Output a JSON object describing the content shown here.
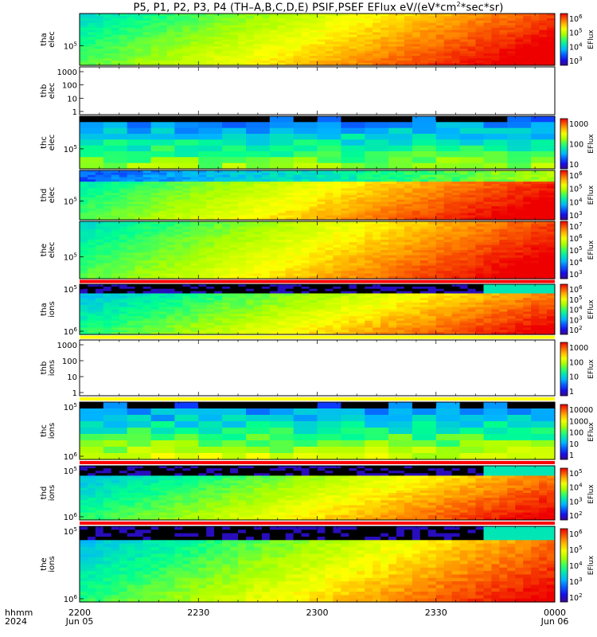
{
  "title": "P5, P1, P2, P3, P4 (TH–A,B,C,D,E) PSIF,PSEF EFlux eV/(eV*cm",
  "title_sup": "2",
  "title_tail": "*sec*sr)",
  "footer": {
    "hhmm": "hhmm",
    "year": "2024",
    "ticks": [
      {
        "label": "2200",
        "date": "Jun 05",
        "frac": 0.0
      },
      {
        "label": "2230",
        "frac": 0.25
      },
      {
        "label": "2300",
        "frac": 0.5
      },
      {
        "label": "2330",
        "frac": 0.75
      },
      {
        "label": "0000",
        "date": "Jun 06",
        "frac": 1.0
      }
    ]
  },
  "chart_data": {
    "type": "heatmap",
    "x_range": [
      "2024-06-05 22:00",
      "2024-06-06 00:00"
    ],
    "colorbar_label": "EFlux",
    "panels": [
      {
        "probe": "tha",
        "species": "elec",
        "ylabels": [
          {
            "base": "10",
            "exp": "5"
          }
        ],
        "cbar_ticks": [
          {
            "base": "10",
            "exp": "3"
          },
          {
            "base": "10",
            "exp": "4"
          },
          {
            "base": "10",
            "exp": "5"
          },
          {
            "base": "10",
            "exp": "6"
          }
        ],
        "has_data": true
      },
      {
        "probe": "thb",
        "species": "elec",
        "ylabels": [
          {
            "base": "1000",
            "exp": ""
          },
          {
            "base": "100",
            "exp": ""
          },
          {
            "base": "10",
            "exp": ""
          },
          {
            "base": "1",
            "exp": ""
          }
        ],
        "cbar_ticks": [],
        "has_data": false
      },
      {
        "probe": "thc",
        "species": "elec",
        "ylabels": [
          {
            "base": "10",
            "exp": "5"
          }
        ],
        "cbar_ticks": [
          {
            "base": "10",
            "exp": ""
          },
          {
            "base": "100",
            "exp": ""
          },
          {
            "base": "1000",
            "exp": ""
          }
        ],
        "has_data": true
      },
      {
        "probe": "thd",
        "species": "elec",
        "ylabels": [
          {
            "base": "10",
            "exp": "5"
          }
        ],
        "cbar_ticks": [
          {
            "base": "10",
            "exp": "3"
          },
          {
            "base": "10",
            "exp": "4"
          },
          {
            "base": "10",
            "exp": "5"
          },
          {
            "base": "10",
            "exp": "6"
          }
        ],
        "has_data": true
      },
      {
        "probe": "the",
        "species": "elec",
        "ylabels": [
          {
            "base": "10",
            "exp": "5"
          }
        ],
        "cbar_ticks": [
          {
            "base": "10",
            "exp": "3"
          },
          {
            "base": "10",
            "exp": "4"
          },
          {
            "base": "10",
            "exp": "5"
          },
          {
            "base": "10",
            "exp": "6"
          },
          {
            "base": "10",
            "exp": "7"
          }
        ],
        "has_data": true
      },
      {
        "probe": "tha",
        "species": "ions",
        "ylabels": [
          {
            "base": "10",
            "exp": "5"
          },
          {
            "base": "10",
            "exp": "6"
          }
        ],
        "cbar_ticks": [
          {
            "base": "10",
            "exp": "2"
          },
          {
            "base": "10",
            "exp": "3"
          },
          {
            "base": "10",
            "exp": "4"
          },
          {
            "base": "10",
            "exp": "5"
          },
          {
            "base": "10",
            "exp": "6"
          }
        ],
        "has_data": true
      },
      {
        "probe": "thb",
        "species": "ions",
        "ylabels": [
          {
            "base": "1000",
            "exp": ""
          },
          {
            "base": "100",
            "exp": ""
          },
          {
            "base": "10",
            "exp": ""
          },
          {
            "base": "1",
            "exp": ""
          }
        ],
        "cbar_ticks": [
          {
            "base": "1",
            "exp": ""
          },
          {
            "base": "10",
            "exp": ""
          },
          {
            "base": "100",
            "exp": ""
          },
          {
            "base": "1000",
            "exp": ""
          }
        ],
        "has_data": false
      },
      {
        "probe": "thc",
        "species": "ions",
        "ylabels": [
          {
            "base": "10",
            "exp": "5"
          },
          {
            "base": "10",
            "exp": "6"
          }
        ],
        "cbar_ticks": [
          {
            "base": "1",
            "exp": ""
          },
          {
            "base": "10",
            "exp": ""
          },
          {
            "base": "100",
            "exp": ""
          },
          {
            "base": "1000",
            "exp": ""
          },
          {
            "base": "10000",
            "exp": ""
          }
        ],
        "has_data": true
      },
      {
        "probe": "thd",
        "species": "ions",
        "ylabels": [
          {
            "base": "10",
            "exp": "5"
          },
          {
            "base": "10",
            "exp": "6"
          }
        ],
        "cbar_ticks": [
          {
            "base": "10",
            "exp": "2"
          },
          {
            "base": "10",
            "exp": "3"
          },
          {
            "base": "10",
            "exp": "4"
          },
          {
            "base": "10",
            "exp": "5"
          }
        ],
        "has_data": true
      },
      {
        "probe": "the",
        "species": "ions",
        "ylabels": [
          {
            "base": "10",
            "exp": "5"
          },
          {
            "base": "10",
            "exp": "6"
          }
        ],
        "cbar_ticks": [
          {
            "base": "10",
            "exp": "2"
          },
          {
            "base": "10",
            "exp": "3"
          },
          {
            "base": "10",
            "exp": "4"
          },
          {
            "base": "10",
            "exp": "5"
          },
          {
            "base": "10",
            "exp": "6"
          }
        ],
        "has_data": true
      }
    ]
  }
}
